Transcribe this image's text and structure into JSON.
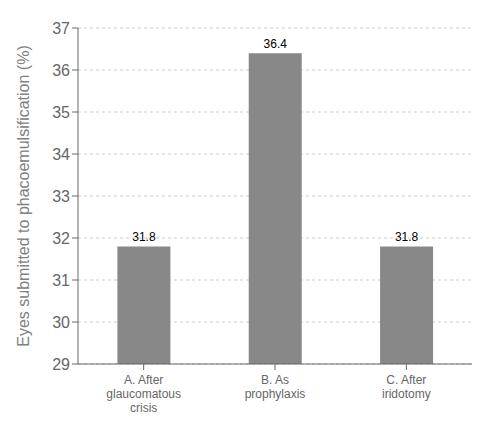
{
  "chart_data": {
    "type": "bar",
    "categories": [
      "A. After\nglaucomatous\ncrisis",
      "B. As\nprophylaxis",
      "C. After\niridotomy"
    ],
    "values": [
      31.8,
      36.4,
      31.8
    ],
    "value_labels": [
      "31.8",
      "36.4",
      "31.8"
    ],
    "data_labels": true,
    "color": "#888888",
    "ylabel": "Eyes submitted to phacoemulsification (%)",
    "ylim": [
      29,
      37
    ],
    "yticks": [
      29,
      30,
      31,
      32,
      33,
      34,
      35,
      36,
      37
    ],
    "grid": true
  }
}
